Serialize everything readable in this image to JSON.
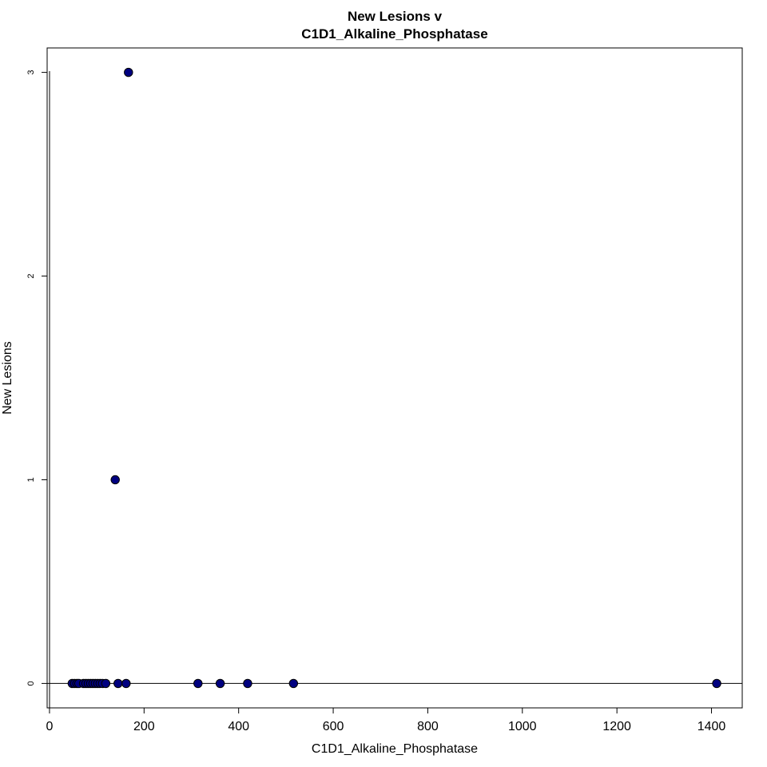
{
  "chart_data": {
    "type": "scatter",
    "title_lines": [
      "New Lesions v",
      "C1D1_Alkaline_Phosphatase"
    ],
    "xlabel": "C1D1_Alkaline_Phosphatase",
    "ylabel": "New Lesions",
    "xlim": [
      -5,
      1465
    ],
    "ylim": [
      -0.12,
      3.12
    ],
    "x_ticks": [
      0,
      200,
      400,
      600,
      800,
      1000,
      1200,
      1400
    ],
    "x_tick_labels": [
      "0",
      "200",
      "400",
      "600",
      "800",
      "1000",
      "1200",
      "1400"
    ],
    "y_ticks": [
      0,
      1,
      2,
      3
    ],
    "y_tick_labels": [
      "0",
      "1",
      "2",
      "3"
    ],
    "hline": 0,
    "point_color": "#000080",
    "point_stroke": "#000000",
    "points": [
      {
        "x": 48,
        "y": 0
      },
      {
        "x": 53,
        "y": 0
      },
      {
        "x": 58,
        "y": 0
      },
      {
        "x": 62,
        "y": 0
      },
      {
        "x": 72,
        "y": 0
      },
      {
        "x": 77,
        "y": 0
      },
      {
        "x": 82,
        "y": 0
      },
      {
        "x": 87,
        "y": 0
      },
      {
        "x": 92,
        "y": 0
      },
      {
        "x": 97,
        "y": 0
      },
      {
        "x": 102,
        "y": 0
      },
      {
        "x": 107,
        "y": 0
      },
      {
        "x": 112,
        "y": 0
      },
      {
        "x": 119,
        "y": 0
      },
      {
        "x": 145,
        "y": 0
      },
      {
        "x": 162,
        "y": 0
      },
      {
        "x": 314,
        "y": 0
      },
      {
        "x": 361,
        "y": 0
      },
      {
        "x": 419,
        "y": 0
      },
      {
        "x": 516,
        "y": 0
      },
      {
        "x": 1411,
        "y": 0
      },
      {
        "x": 139,
        "y": 1
      },
      {
        "x": 167,
        "y": 3
      }
    ]
  }
}
